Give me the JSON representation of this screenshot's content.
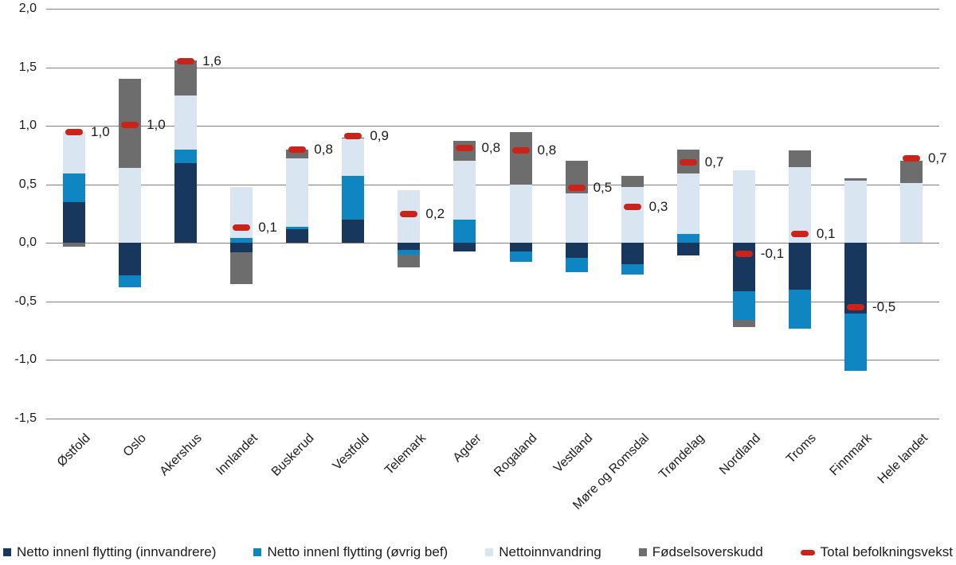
{
  "chart_data": {
    "type": "bar",
    "stacked": true,
    "title": "",
    "xlabel": "",
    "ylabel": "",
    "categories": [
      "Østfold",
      "Oslo",
      "Akershus",
      "Innlandet",
      "Buskerud",
      "Vestfold",
      "Telemark",
      "Agder",
      "Rogaland",
      "Vestland",
      "Møre og Romsdal",
      "Trøndelag",
      "Nordland",
      "Troms",
      "Finnmark",
      "Hele landet"
    ],
    "series": [
      {
        "name": "Netto innenl flytting (innvandrere)",
        "color": "#17375c",
        "role": "stack",
        "values": [
          0.35,
          -0.28,
          0.68,
          -0.08,
          0.12,
          0.2,
          -0.06,
          -0.07,
          -0.07,
          -0.13,
          -0.18,
          -0.11,
          -0.41,
          -0.4,
          -0.6,
          0.0
        ]
      },
      {
        "name": "Netto innenl flytting (øvrig bef)",
        "color": "#0f86c2",
        "role": "stack",
        "values": [
          0.24,
          -0.1,
          0.12,
          0.04,
          0.02,
          0.37,
          -0.04,
          0.2,
          -0.09,
          -0.12,
          -0.09,
          0.08,
          -0.25,
          -0.33,
          -0.49,
          0.0
        ]
      },
      {
        "name": "Nettoinnvandring",
        "color": "#d9e6f2",
        "role": "stack",
        "values": [
          0.36,
          0.64,
          0.46,
          0.44,
          0.58,
          0.32,
          0.45,
          0.5,
          0.5,
          0.42,
          0.48,
          0.51,
          0.62,
          0.65,
          0.53,
          0.51
        ]
      },
      {
        "name": "Fødselsoverskudd",
        "color": "#6d6d6d",
        "role": "stack",
        "values": [
          -0.03,
          0.76,
          0.3,
          -0.27,
          0.08,
          0.01,
          -0.11,
          0.17,
          0.45,
          0.28,
          0.09,
          0.21,
          -0.06,
          0.14,
          0.02,
          0.19
        ]
      },
      {
        "name": "Total befolkningsvekst",
        "color": "#c9231a",
        "role": "marker",
        "values": [
          0.95,
          1.01,
          1.55,
          0.13,
          0.8,
          0.91,
          0.25,
          0.81,
          0.79,
          0.47,
          0.31,
          0.69,
          -0.09,
          0.08,
          -0.55,
          0.72
        ]
      }
    ],
    "total_labels": [
      "1,0",
      "1,0",
      "1,6",
      "0,1",
      "0,8",
      "0,9",
      "0,2",
      "0,8",
      "0,8",
      "0,5",
      "0,3",
      "0,7",
      "-0,1",
      "0,1",
      "-0,5",
      "0,7"
    ],
    "ylim": [
      -1.5,
      2.0
    ],
    "ytick_values": [
      2.0,
      1.5,
      1.0,
      0.5,
      0.0,
      -0.5,
      -1.0,
      -1.5
    ],
    "ytick_labels": [
      "2,0",
      "1,5",
      "1,0",
      "0,5",
      "0,0",
      "-0,5",
      "-1,0",
      "-1,5"
    ],
    "grid": true,
    "legend_position": "bottom",
    "decimal_separator": ","
  }
}
